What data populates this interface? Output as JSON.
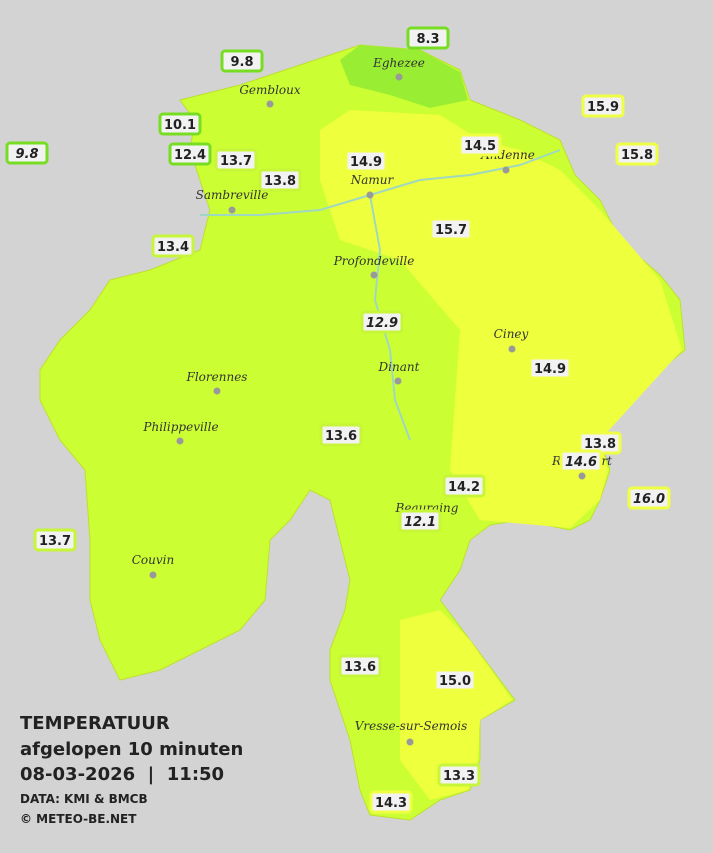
{
  "map": {
    "towns": [
      "Eghezee",
      "Gembloux",
      "Andenne",
      "Namur",
      "Sambreville",
      "Profondeville",
      "Ciney",
      "Dinant",
      "Florennes",
      "Philippeville",
      "Beauraing",
      "Rochefort",
      "Couvin",
      "Vresse-sur-Semois"
    ],
    "stations": [
      {
        "temp": "9.8",
        "italic": true
      },
      {
        "temp": "9.8",
        "italic": false
      },
      {
        "temp": "8.3",
        "italic": false
      },
      {
        "temp": "10.1",
        "italic": false
      },
      {
        "temp": "12.4",
        "italic": false
      },
      {
        "temp": "13.7",
        "italic": false
      },
      {
        "temp": "13.8",
        "italic": false
      },
      {
        "temp": "14.9",
        "italic": false
      },
      {
        "temp": "14.5",
        "italic": false
      },
      {
        "temp": "15.9",
        "italic": false
      },
      {
        "temp": "15.8",
        "italic": false
      },
      {
        "temp": "13.4",
        "italic": false
      },
      {
        "temp": "15.7",
        "italic": false
      },
      {
        "temp": "12.9",
        "italic": true
      },
      {
        "temp": "14.9",
        "italic": false
      },
      {
        "temp": "13.6",
        "italic": false
      },
      {
        "temp": "13.8",
        "italic": false
      },
      {
        "temp": "14.6",
        "italic": true
      },
      {
        "temp": "14.2",
        "italic": false
      },
      {
        "temp": "16.0",
        "italic": true
      },
      {
        "temp": "12.1",
        "italic": true
      },
      {
        "temp": "13.7",
        "italic": false
      },
      {
        "temp": "13.6",
        "italic": false
      },
      {
        "temp": "15.0",
        "italic": false
      },
      {
        "temp": "13.3",
        "italic": false
      },
      {
        "temp": "14.3",
        "italic": false
      }
    ],
    "legend": {
      "title": "TEMPERATUUR",
      "period": "afgelopen 10 minuten",
      "datetime": "08-03-2026  |  11:50",
      "source": "DATA: KMI & BMCB",
      "copyright": "© METEO-BE.NET"
    }
  }
}
